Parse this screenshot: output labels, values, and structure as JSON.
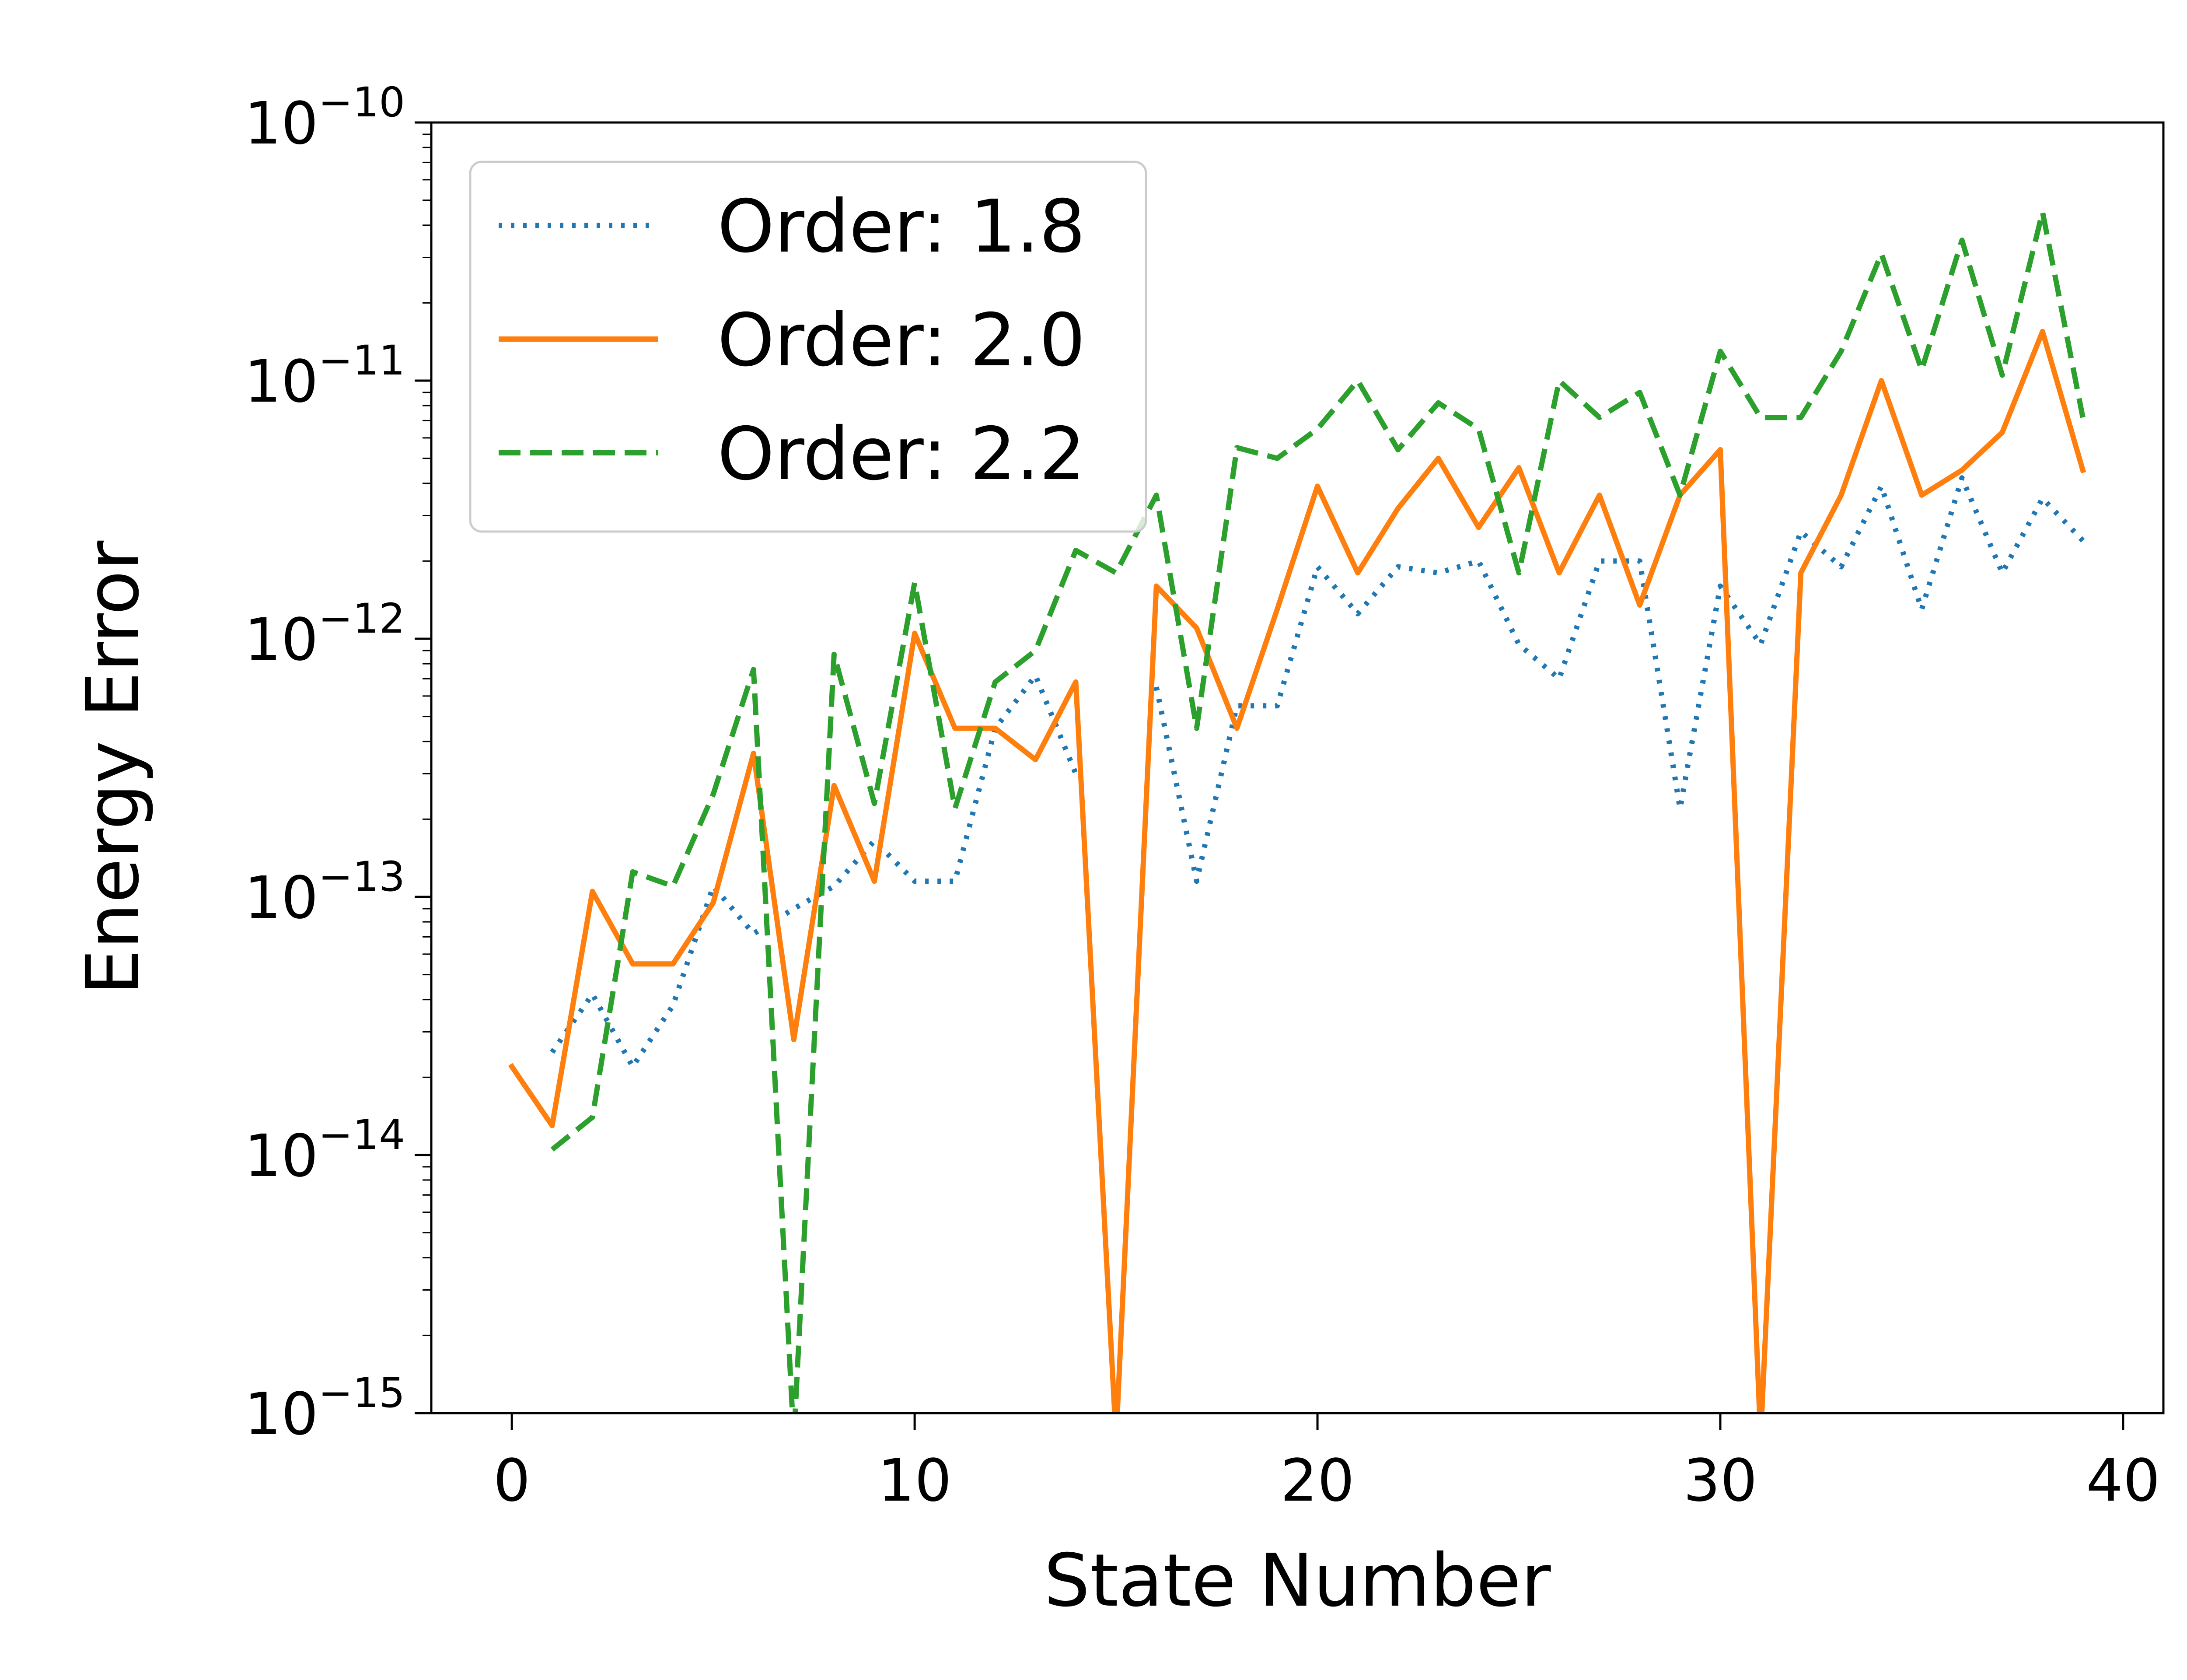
{
  "chart_data": {
    "type": "line",
    "xlabel": "State Number",
    "ylabel": "Energy Error",
    "xlim": [
      -2,
      41
    ],
    "ylim": [
      1e-15,
      1e-10
    ],
    "yscale": "log",
    "grid": false,
    "legend_position": "top-left",
    "x_ticks": [
      0,
      10,
      20,
      30,
      40
    ],
    "x_tick_labels": [
      "0",
      "10",
      "20",
      "30",
      "40"
    ],
    "y_ticks": [
      1e-15,
      1e-14,
      1e-13,
      1e-12,
      1e-11,
      1e-10
    ],
    "y_tick_labels": [
      {
        "base": "10",
        "exp": "−15"
      },
      {
        "base": "10",
        "exp": "−14"
      },
      {
        "base": "10",
        "exp": "−13"
      },
      {
        "base": "10",
        "exp": "−12"
      },
      {
        "base": "10",
        "exp": "−11"
      },
      {
        "base": "10",
        "exp": "−10"
      }
    ],
    "x": [
      0,
      1,
      2,
      3,
      4,
      5,
      6,
      7,
      8,
      9,
      10,
      11,
      12,
      13,
      14,
      15,
      16,
      17,
      18,
      19,
      20,
      21,
      22,
      23,
      24,
      25,
      26,
      27,
      28,
      29,
      30,
      31,
      32,
      33,
      34,
      35,
      36,
      37,
      38,
      39
    ],
    "series": [
      {
        "name": "Order: 1.8",
        "color": "#1f77b4",
        "style": "dotted",
        "values": [
          null,
          2.5e-14,
          4.2e-14,
          2.2e-14,
          3.8e-14,
          1.1e-13,
          7.2e-14,
          9e-14,
          1.1e-13,
          1.65e-13,
          1.15e-13,
          1.15e-13,
          4.5e-13,
          7.2e-13,
          3e-13,
          null,
          6.5e-13,
          1.15e-13,
          5.5e-13,
          5.5e-13,
          1.9e-12,
          1.25e-12,
          1.9e-12,
          1.8e-12,
          2e-12,
          9.5e-13,
          7e-13,
          2e-12,
          2e-12,
          2.2e-13,
          1.6e-12,
          9.5e-13,
          2.6e-12,
          1.9e-12,
          3.9e-12,
          1.3e-12,
          4.2e-12,
          1.8e-12,
          3.5e-12,
          2.4e-12
        ]
      },
      {
        "name": "Order: 2.0",
        "color": "#ff7f0e",
        "style": "solid",
        "values": [
          2.2e-14,
          1.3e-14,
          1.05e-13,
          5.5e-14,
          5.5e-14,
          9.5e-14,
          3.6e-13,
          2.8e-14,
          2.7e-13,
          1.15e-13,
          1.05e-12,
          4.5e-13,
          4.5e-13,
          3.4e-13,
          6.8e-13,
          0,
          1.6e-12,
          1.1e-12,
          4.5e-13,
          1.3e-12,
          3.9e-12,
          1.8e-12,
          3.2e-12,
          5e-12,
          2.7e-12,
          4.6e-12,
          1.8e-12,
          3.6e-12,
          1.35e-12,
          3.6e-12,
          5.4e-12,
          0,
          1.8e-12,
          3.6e-12,
          1e-11,
          3.6e-12,
          4.5e-12,
          6.3e-12,
          1.55e-11,
          4.5e-12
        ]
      },
      {
        "name": "Order: 2.2",
        "color": "#2ca02c",
        "style": "dashed",
        "values": [
          null,
          1.05e-14,
          1.4e-14,
          1.25e-13,
          1.1e-13,
          2.5e-13,
          7.6e-13,
          0,
          8.7e-13,
          2.3e-13,
          1.65e-12,
          2.2e-13,
          6.8e-13,
          9e-13,
          2.2e-12,
          1.8e-12,
          3.6e-12,
          4.5e-13,
          5.5e-12,
          5e-12,
          6.5e-12,
          1e-11,
          5.4e-12,
          8.2e-12,
          6.5e-12,
          1.8e-12,
          1e-11,
          7.2e-12,
          9e-12,
          3.6e-12,
          1.3e-11,
          7.2e-12,
          7.2e-12,
          1.3e-11,
          3.1e-11,
          1.1e-11,
          3.5e-11,
          1.05e-11,
          4.5e-11,
          7.2e-12
        ]
      }
    ]
  }
}
